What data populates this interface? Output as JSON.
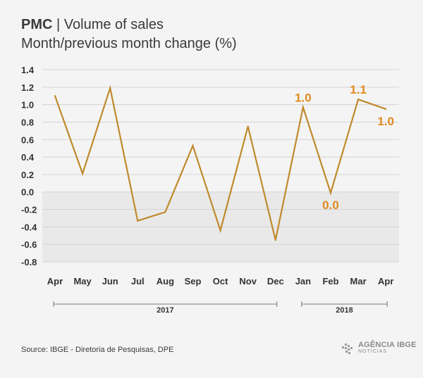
{
  "header": {
    "brand_prefix": "PMC",
    "separator": "|",
    "title": "Volume of sales",
    "subtitle": "Month/previous month change (%)"
  },
  "chart_data": {
    "type": "line",
    "categories": [
      "Apr",
      "May",
      "Jun",
      "Jul",
      "Aug",
      "Sep",
      "Oct",
      "Nov",
      "Dec",
      "Jan",
      "Feb",
      "Mar",
      "Apr"
    ],
    "values": [
      1.1,
      0.21,
      1.19,
      -0.33,
      -0.23,
      0.53,
      -0.44,
      0.75,
      -0.55,
      0.97,
      -0.01,
      1.06,
      0.95
    ],
    "ylim": [
      -0.8,
      1.4
    ],
    "yticks": [
      "1.4",
      "1.2",
      "1.0",
      "0.8",
      "0.6",
      "0.4",
      "0.2",
      "0.0",
      "-0.2",
      "-0.4",
      "-0.6",
      "-0.8"
    ],
    "line_color": "#c08a2c",
    "label_color": "#e08a1e",
    "negative_band_color": "#e9e9e9",
    "grid": true,
    "data_labels": [
      {
        "index": 9,
        "text": "1.0",
        "position": "above"
      },
      {
        "index": 10,
        "text": "0.0",
        "position": "below"
      },
      {
        "index": 11,
        "text": "1.1",
        "position": "above"
      },
      {
        "index": 12,
        "text": "1.0",
        "position": "below"
      }
    ],
    "year_groups": [
      {
        "label": "2017",
        "start": 0,
        "end": 8
      },
      {
        "label": "2018",
        "start": 9,
        "end": 12
      }
    ]
  },
  "footer": {
    "source": "Source: IBGE - Diretoria de Pesquisas, DPE",
    "brand_main": "AGÊNCIA IBGE",
    "brand_sub": "NOTÍCIAS",
    "brand_icon": "ibge-logo-icon"
  }
}
